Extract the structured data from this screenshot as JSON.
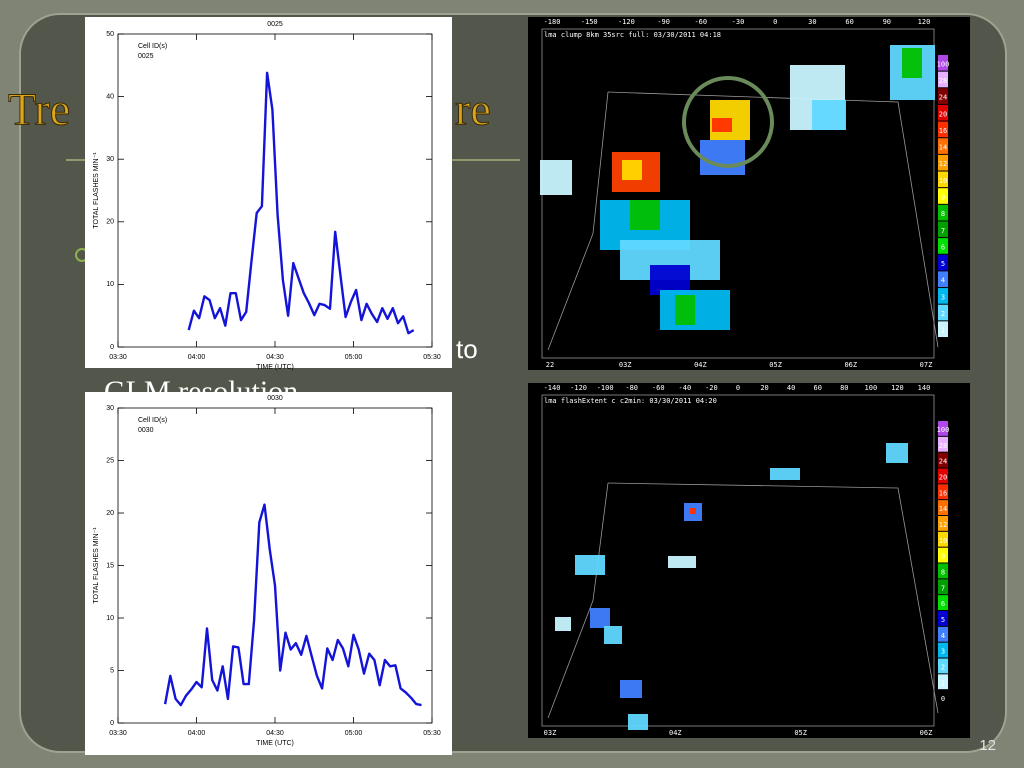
{
  "slide": {
    "title_left": "Tre",
    "title_right": "re",
    "bullet_fragment": "to",
    "subtext_fragment": "GLM resolution",
    "page_number": "12"
  },
  "chart_data": [
    {
      "type": "line",
      "title": "0025",
      "legend_title": "Cell ID(s)",
      "xlabel": "TIME (UTC)",
      "ylabel": "TOTAL FLASHES MIN⁻¹",
      "x": [
        237,
        239,
        241,
        243,
        245,
        247,
        249,
        251,
        253,
        255,
        257,
        259,
        261,
        263,
        265,
        267,
        269,
        271,
        273,
        275,
        277,
        279,
        281,
        283,
        285,
        287,
        289,
        291,
        293,
        295,
        297,
        299,
        301,
        303,
        305,
        307,
        309,
        311,
        313,
        315,
        317,
        319,
        321,
        323
      ],
      "series": [
        {
          "name": "0025",
          "color": "#1414d8",
          "values": [
            2.7,
            5.8,
            4.6,
            8.1,
            7.5,
            4.6,
            6.2,
            3.4,
            8.6,
            8.6,
            4.3,
            5.6,
            13.6,
            21.4,
            22.5,
            43.8,
            37.9,
            21.1,
            10.7,
            5,
            13.4,
            11,
            8.6,
            7,
            5.1,
            6.9,
            6.7,
            6.1,
            18.4,
            11.5,
            4.8,
            7.2,
            9.1,
            4.3,
            6.9,
            5.3,
            4,
            6.2,
            4.5,
            6.2,
            3.8,
            4.9,
            2.2,
            2.7
          ]
        }
      ],
      "xlim": [
        210,
        330
      ],
      "xticks": [
        {
          "value": 210,
          "label": "03:30"
        },
        {
          "value": 240,
          "label": "04:00"
        },
        {
          "value": 270,
          "label": "04:30"
        },
        {
          "value": 300,
          "label": "05:00"
        },
        {
          "value": 330,
          "label": "05:30"
        }
      ],
      "ylim": [
        0,
        50
      ],
      "yticks": [
        0,
        10,
        20,
        30,
        40,
        50
      ]
    },
    {
      "type": "line",
      "title": "0030",
      "legend_title": "Cell ID(s)",
      "xlabel": "TIME (UTC)",
      "ylabel": "TOTAL FLASHES MIN⁻¹",
      "x": [
        228,
        230,
        232,
        234,
        236,
        238,
        240,
        242,
        244,
        246,
        248,
        250,
        252,
        254,
        256,
        258,
        260,
        262,
        264,
        266,
        268,
        270,
        272,
        274,
        276,
        278,
        280,
        282,
        284,
        286,
        288,
        290,
        292,
        294,
        296,
        298,
        300,
        302,
        304,
        306,
        308,
        310,
        312,
        314,
        316,
        318,
        320,
        322,
        324,
        326
      ],
      "series": [
        {
          "name": "0030",
          "color": "#1414d8",
          "values": [
            1.8,
            4.5,
            2.3,
            1.7,
            2.6,
            3.2,
            3.9,
            3.4,
            9,
            4.1,
            3.1,
            5.4,
            2.3,
            7.3,
            7.2,
            3.7,
            3.7,
            9.8,
            19.1,
            20.8,
            16.5,
            13.1,
            5,
            8.6,
            7,
            7.6,
            6.5,
            8.3,
            6.4,
            4.5,
            3.3,
            7.1,
            6,
            7.9,
            7.1,
            5.4,
            8.4,
            7,
            4.7,
            6.6,
            6,
            3.6,
            6,
            5.4,
            5.5,
            3.3,
            2.9,
            2.4,
            1.8,
            1.7
          ]
        }
      ],
      "xlim": [
        210,
        330
      ],
      "xticks": [
        {
          "value": 210,
          "label": "03:30"
        },
        {
          "value": 240,
          "label": "04:00"
        },
        {
          "value": 270,
          "label": "04:30"
        },
        {
          "value": 300,
          "label": "05:00"
        },
        {
          "value": 330,
          "label": "05:30"
        }
      ],
      "ylim": [
        0,
        30
      ],
      "yticks": [
        0,
        5,
        10,
        15,
        20,
        25,
        30
      ]
    }
  ],
  "radar_panels": [
    {
      "header": "lma clump 8km 35src full: 03/30/2011 04:18",
      "top_labels": [
        "-180",
        "-150",
        "-120",
        "-90",
        "-60",
        "-30",
        "0",
        "30",
        "60",
        "90",
        "120"
      ],
      "colorbar_labels": [
        "100",
        "28",
        "24",
        "20",
        "16",
        "14",
        "12",
        "10",
        "9",
        "8",
        "7",
        "6",
        "5",
        "4",
        "3",
        "2",
        "1"
      ],
      "bottom_labels": [
        "22",
        "03Z",
        "04Z",
        "05Z",
        "06Z",
        "07Z"
      ]
    },
    {
      "header": "lma flashExtent c c2min: 03/30/2011 04:20",
      "top_labels": [
        "-140",
        "-120",
        "-100",
        "-80",
        "-60",
        "-40",
        "-20",
        "0",
        "20",
        "40",
        "60",
        "80",
        "100",
        "120",
        "140"
      ],
      "colorbar_labels": [
        "100",
        "28",
        "24",
        "20",
        "16",
        "14",
        "12",
        "10",
        "9",
        "8",
        "7",
        "6",
        "5",
        "4",
        "3",
        "2",
        "1",
        "0"
      ],
      "bottom_labels": [
        "03Z",
        "04Z",
        "05Z",
        "06Z"
      ]
    }
  ]
}
